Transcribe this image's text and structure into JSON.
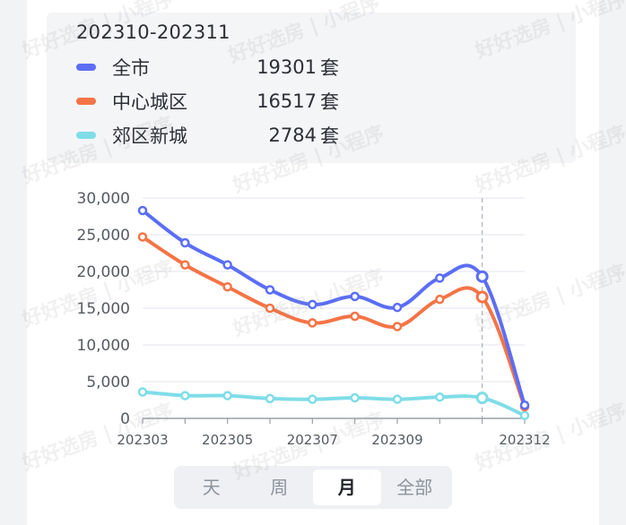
{
  "legend": {
    "title": "202310-202311",
    "items": [
      {
        "name": "全市",
        "value": "19301",
        "unit": "套",
        "color": "#5b6ef5"
      },
      {
        "name": "中心城区",
        "value": "16517",
        "unit": "套",
        "color": "#f47446"
      },
      {
        "name": "郊区新城",
        "value": "2784",
        "unit": "套",
        "color": "#7fdde8"
      }
    ]
  },
  "chart_data": {
    "type": "line",
    "x": [
      "202303",
      "202304",
      "202305",
      "202306",
      "202307",
      "202308",
      "202309",
      "202310",
      "202311",
      "202312"
    ],
    "x_tick_labels": [
      "202303",
      "202305",
      "202307",
      "202309",
      "202312"
    ],
    "y_tick_labels": [
      "30,000",
      "25,000",
      "20,000",
      "15,000",
      "10,000",
      "5,000",
      "0"
    ],
    "ylim": [
      0,
      30000
    ],
    "grid": true,
    "highlight_x": "202311",
    "series": [
      {
        "name": "全市",
        "color": "#5b6ef5",
        "values": [
          28300,
          23900,
          20900,
          17500,
          15500,
          16600,
          15100,
          19100,
          19301,
          1800
        ]
      },
      {
        "name": "中心城区",
        "color": "#f47446",
        "values": [
          24700,
          20900,
          17900,
          15000,
          13000,
          13900,
          12500,
          16200,
          16517,
          1600
        ]
      },
      {
        "name": "郊区新城",
        "color": "#7fdde8",
        "values": [
          3600,
          3100,
          3100,
          2700,
          2600,
          2800,
          2600,
          2900,
          2784,
          400
        ]
      }
    ]
  },
  "toggle": {
    "items": [
      "天",
      "周",
      "月",
      "全部"
    ],
    "active_index": 2
  },
  "watermark": "好好选房 | 小程序"
}
